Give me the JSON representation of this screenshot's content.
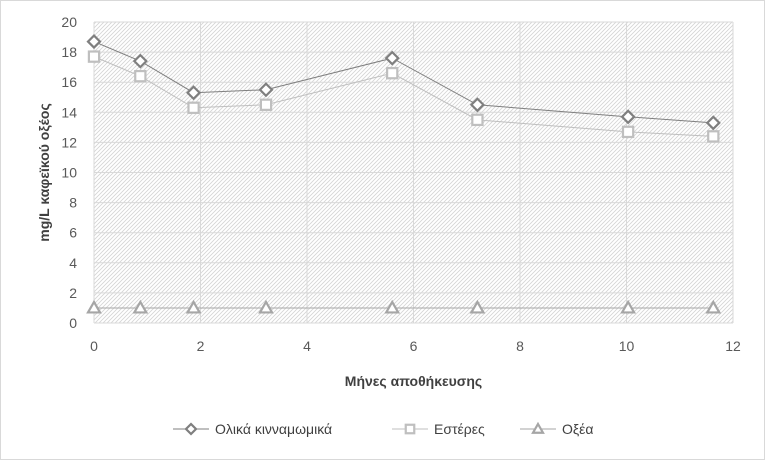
{
  "chart_data": {
    "type": "scatter",
    "xlabel": "Μήνες αποθήκευσης",
    "ylabel": "mg/L καφεϊκού οξέος",
    "xlim": [
      0,
      12
    ],
    "ylim": [
      0,
      20
    ],
    "xticks": [
      0,
      2,
      4,
      6,
      8,
      10,
      12
    ],
    "yticks": [
      0,
      2,
      4,
      6,
      8,
      10,
      12,
      14,
      16,
      18,
      20
    ],
    "grid": true,
    "legend_position": "bottom",
    "series": [
      {
        "name": "Ολικά κινναμωμικά",
        "marker": "diamond",
        "color": "#7f7f7f",
        "x": [
          0,
          0.87,
          1.87,
          3.23,
          5.6,
          7.2,
          10.03,
          11.63
        ],
        "y": [
          18.7,
          17.4,
          15.3,
          15.5,
          17.6,
          14.5,
          13.7,
          13.3
        ]
      },
      {
        "name": "Εστέρες",
        "marker": "square",
        "color": "#bfbfbf",
        "x": [
          0,
          0.87,
          1.87,
          3.23,
          5.6,
          7.2,
          10.03,
          11.63
        ],
        "y": [
          17.7,
          16.4,
          14.3,
          14.5,
          16.6,
          13.5,
          12.7,
          12.4
        ]
      },
      {
        "name": "Οξέα",
        "marker": "triangle",
        "color": "#a6a6a6",
        "x": [
          0,
          0.87,
          1.87,
          3.23,
          5.6,
          7.2,
          10.03,
          11.63
        ],
        "y": [
          1.0,
          1.0,
          1.0,
          1.0,
          1.0,
          1.0,
          1.0,
          1.0
        ]
      }
    ]
  }
}
